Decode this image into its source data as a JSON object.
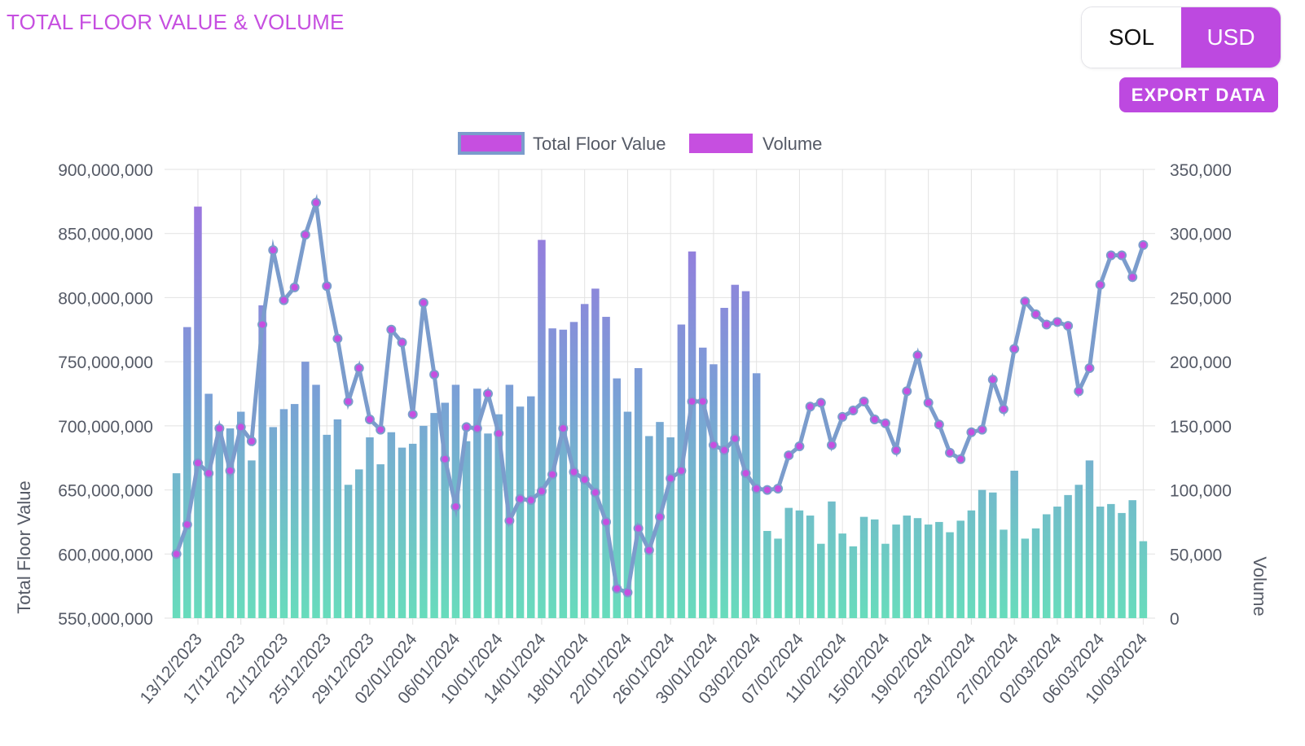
{
  "header": {
    "title": "TOTAL FLOOR VALUE & VOLUME",
    "currency_options": [
      "SOL",
      "USD"
    ],
    "selected_currency": "USD",
    "export_label": "EXPORT DATA"
  },
  "colors": {
    "accent": "#bd49e0",
    "line": "#7b9ccc",
    "bar_top": "#a06de0",
    "bar_mid": "#7aa0d6",
    "bar_bottom": "#68dcbc",
    "point": "#c64fe0",
    "grid": "#e2e2e2",
    "axis_text": "#555a66"
  },
  "chart_data": {
    "type": "bar+line",
    "title": "TOTAL FLOOR VALUE & VOLUME",
    "legend": [
      "Total Floor Value",
      "Volume"
    ],
    "legend_position": "top-center",
    "left_axis": {
      "label": "Total Floor Value",
      "range": [
        550000000,
        900000000
      ],
      "ticks": [
        "550,000,000",
        "600,000,000",
        "650,000,000",
        "700,000,000",
        "750,000,000",
        "800,000,000",
        "850,000,000",
        "900,000,000"
      ]
    },
    "right_axis": {
      "label": "Volume",
      "range": [
        0,
        350000
      ],
      "ticks": [
        "0",
        "50,000",
        "100,000",
        "150,000",
        "200,000",
        "250,000",
        "300,000",
        "350,000"
      ]
    },
    "x_tick_labels": [
      "13/12/2023",
      "17/12/2023",
      "21/12/2023",
      "25/12/2023",
      "29/12/2023",
      "02/01/2024",
      "06/01/2024",
      "10/01/2024",
      "14/01/2024",
      "18/01/2024",
      "22/01/2024",
      "26/01/2024",
      "30/01/2024",
      "03/02/2024",
      "07/02/2024",
      "11/02/2024",
      "15/02/2024",
      "19/02/2024",
      "23/02/2024",
      "27/02/2024",
      "02/03/2024",
      "06/03/2024",
      "10/03/2024"
    ],
    "start_date": "11/12/2023",
    "volume": [
      113000,
      227000,
      321000,
      175000,
      148000,
      148000,
      161000,
      123000,
      244000,
      149000,
      163000,
      167000,
      200000,
      182000,
      143000,
      155000,
      104000,
      116000,
      141000,
      120000,
      145000,
      133000,
      136000,
      150000,
      160000,
      168000,
      182000,
      138000,
      179000,
      144000,
      159000,
      182000,
      165000,
      173000,
      295000,
      226000,
      225000,
      231000,
      245000,
      257000,
      235000,
      187000,
      161000,
      195000,
      142000,
      153000,
      141000,
      229000,
      286000,
      211000,
      198000,
      242000,
      260000,
      255000,
      191000,
      68000,
      62000,
      86000,
      84000,
      80000,
      58000,
      91000,
      66000,
      56000,
      79000,
      77000,
      58000,
      73000,
      80000,
      78000,
      73000,
      75000,
      67000,
      76000,
      84000,
      100000,
      98000,
      69000,
      115000,
      62000,
      70000,
      81000,
      87000,
      96000,
      104000,
      123000,
      87000,
      89000,
      82000,
      92000,
      60000
    ],
    "total_floor_value": [
      600000000,
      623000000,
      671000000,
      663000000,
      698000000,
      665000000,
      699000000,
      688000000,
      779000000,
      837000000,
      798000000,
      808000000,
      849000000,
      874000000,
      809000000,
      768000000,
      719000000,
      745000000,
      705000000,
      697000000,
      775000000,
      765000000,
      709000000,
      796000000,
      740000000,
      674000000,
      637000000,
      699000000,
      698000000,
      725000000,
      694000000,
      626000000,
      643000000,
      642000000,
      649000000,
      662000000,
      698000000,
      664000000,
      658000000,
      648000000,
      625000000,
      573000000,
      570000000,
      620000000,
      603000000,
      629000000,
      659000000,
      665000000,
      719000000,
      719000000,
      685000000,
      681000000,
      690000000,
      663000000,
      651000000,
      650000000,
      651000000,
      677000000,
      684000000,
      715000000,
      718000000,
      685000000,
      707000000,
      712000000,
      719000000,
      705000000,
      702000000,
      681000000,
      727000000,
      755000000,
      718000000,
      701000000,
      679000000,
      674000000,
      695000000,
      697000000,
      736000000,
      713000000,
      760000000,
      797000000,
      787000000,
      779000000,
      781000000,
      778000000,
      727000000,
      745000000,
      810000000,
      833000000,
      833000000,
      816000000,
      841000000
    ]
  }
}
